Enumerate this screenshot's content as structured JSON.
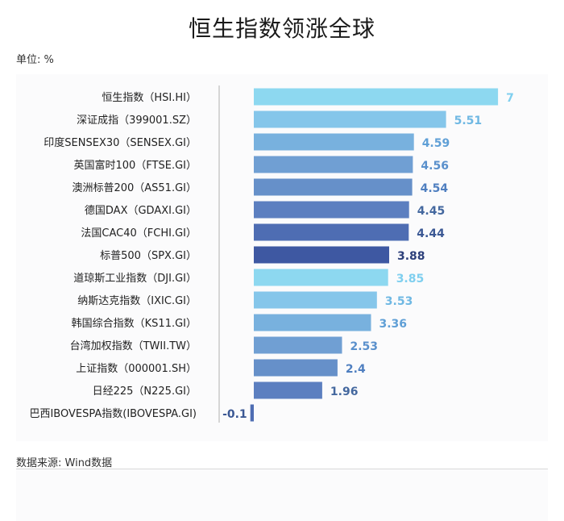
{
  "title": "恒生指数领涨全球",
  "unit_label": "单位: %",
  "source_label": "数据来源: Wind数据",
  "chart_data": {
    "type": "bar",
    "orientation": "horizontal",
    "categories": [
      "恒生指数（HSI.HI）",
      "深证成指（399001.SZ）",
      "印度SENSEX30（SENSEX.GI）",
      "英国富时100（FTSE.GI）",
      "澳洲标普200（AS51.GI）",
      "德国DAX（GDAXI.GI）",
      "法国CAC40（FCHI.GI）",
      "标普500（SPX.GI）",
      "道琼斯工业指数（DJI.GI）",
      "纳斯达克指数（IXIC.GI）",
      "韩国综合指数（KS11.GI）",
      "台湾加权指数（TWII.TW）",
      "上证指数（000001.SH）",
      "日经225（N225.GI）",
      "巴西IBOVESPA指数(IBOVESPA.GI)"
    ],
    "values": [
      7,
      5.51,
      4.59,
      4.56,
      4.54,
      4.45,
      4.44,
      3.88,
      3.85,
      3.53,
      3.36,
      2.53,
      2.4,
      1.96,
      -0.1
    ],
    "value_labels": [
      "7",
      "5.51",
      "4.59",
      "4.56",
      "4.54",
      "4.45",
      "4.44",
      "3.88",
      "3.85",
      "3.53",
      "3.36",
      "2.53",
      "2.4",
      "1.96",
      "-0.1"
    ],
    "bar_colors": [
      "#8dd8f0",
      "#85c6ea",
      "#78b1de",
      "#709fd3",
      "#6690c9",
      "#5c7fc0",
      "#4e6db3",
      "#3e58a2",
      "#8dd8f0",
      "#85c6ea",
      "#78b1de",
      "#709fd3",
      "#6690c9",
      "#5c7fc0",
      "#4e6db3"
    ],
    "label_colors": [
      "#7fcfef",
      "#6fb8e3",
      "#5f9fd6",
      "#5a90cc",
      "#4f7fc0",
      "#44689f",
      "#3b5894",
      "#2c3f7a",
      "#7fcfef",
      "#6fb8e3",
      "#5f9fd6",
      "#5a90cc",
      "#4f7fc0",
      "#44689f",
      "#3b5894"
    ],
    "xlim": [
      -0.1,
      7
    ]
  }
}
